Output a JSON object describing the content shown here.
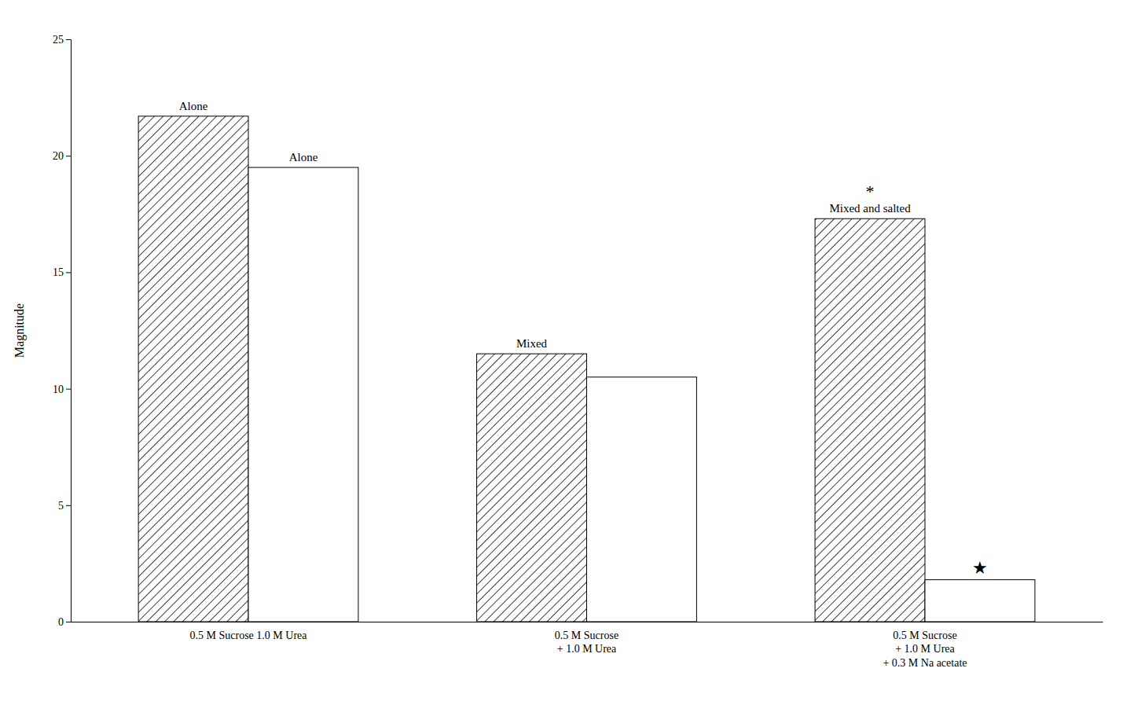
{
  "chart_data": {
    "type": "bar",
    "categories": [
      "0.5 M Sucrose   1.0 M Urea",
      "0.5 M Sucrose\n+ 1.0 M Urea",
      "0.5 M Sucrose\n+ 1.0 M Urea\n+ 0.3 M Na acetate"
    ],
    "series": [
      {
        "color": "#ffffff",
        "values": [
          21.7,
          11.5,
          17.3
        ]
      },
      {
        "color": "#ffffff",
        "values": [
          19.5,
          10.5,
          1.8
        ]
      }
    ],
    "annotations": [
      {
        "text": "Alone",
        "series": 0,
        "category": 0
      },
      {
        "text": "Alone",
        "series": 1,
        "category": 0
      },
      {
        "text": "Mixed",
        "series": 0,
        "category": 1
      },
      {
        "text": "Mixed and salted",
        "series": 0,
        "category": 2
      },
      {
        "text": "*",
        "series": 0,
        "category": 2
      },
      {
        "text": "★",
        "series": 1,
        "category": 2
      }
    ],
    "ylabel": "Magnitude",
    "ylim": [
      0,
      25
    ],
    "yticks": [
      0,
      5,
      10,
      15,
      20,
      25
    ],
    "grid": false
  }
}
